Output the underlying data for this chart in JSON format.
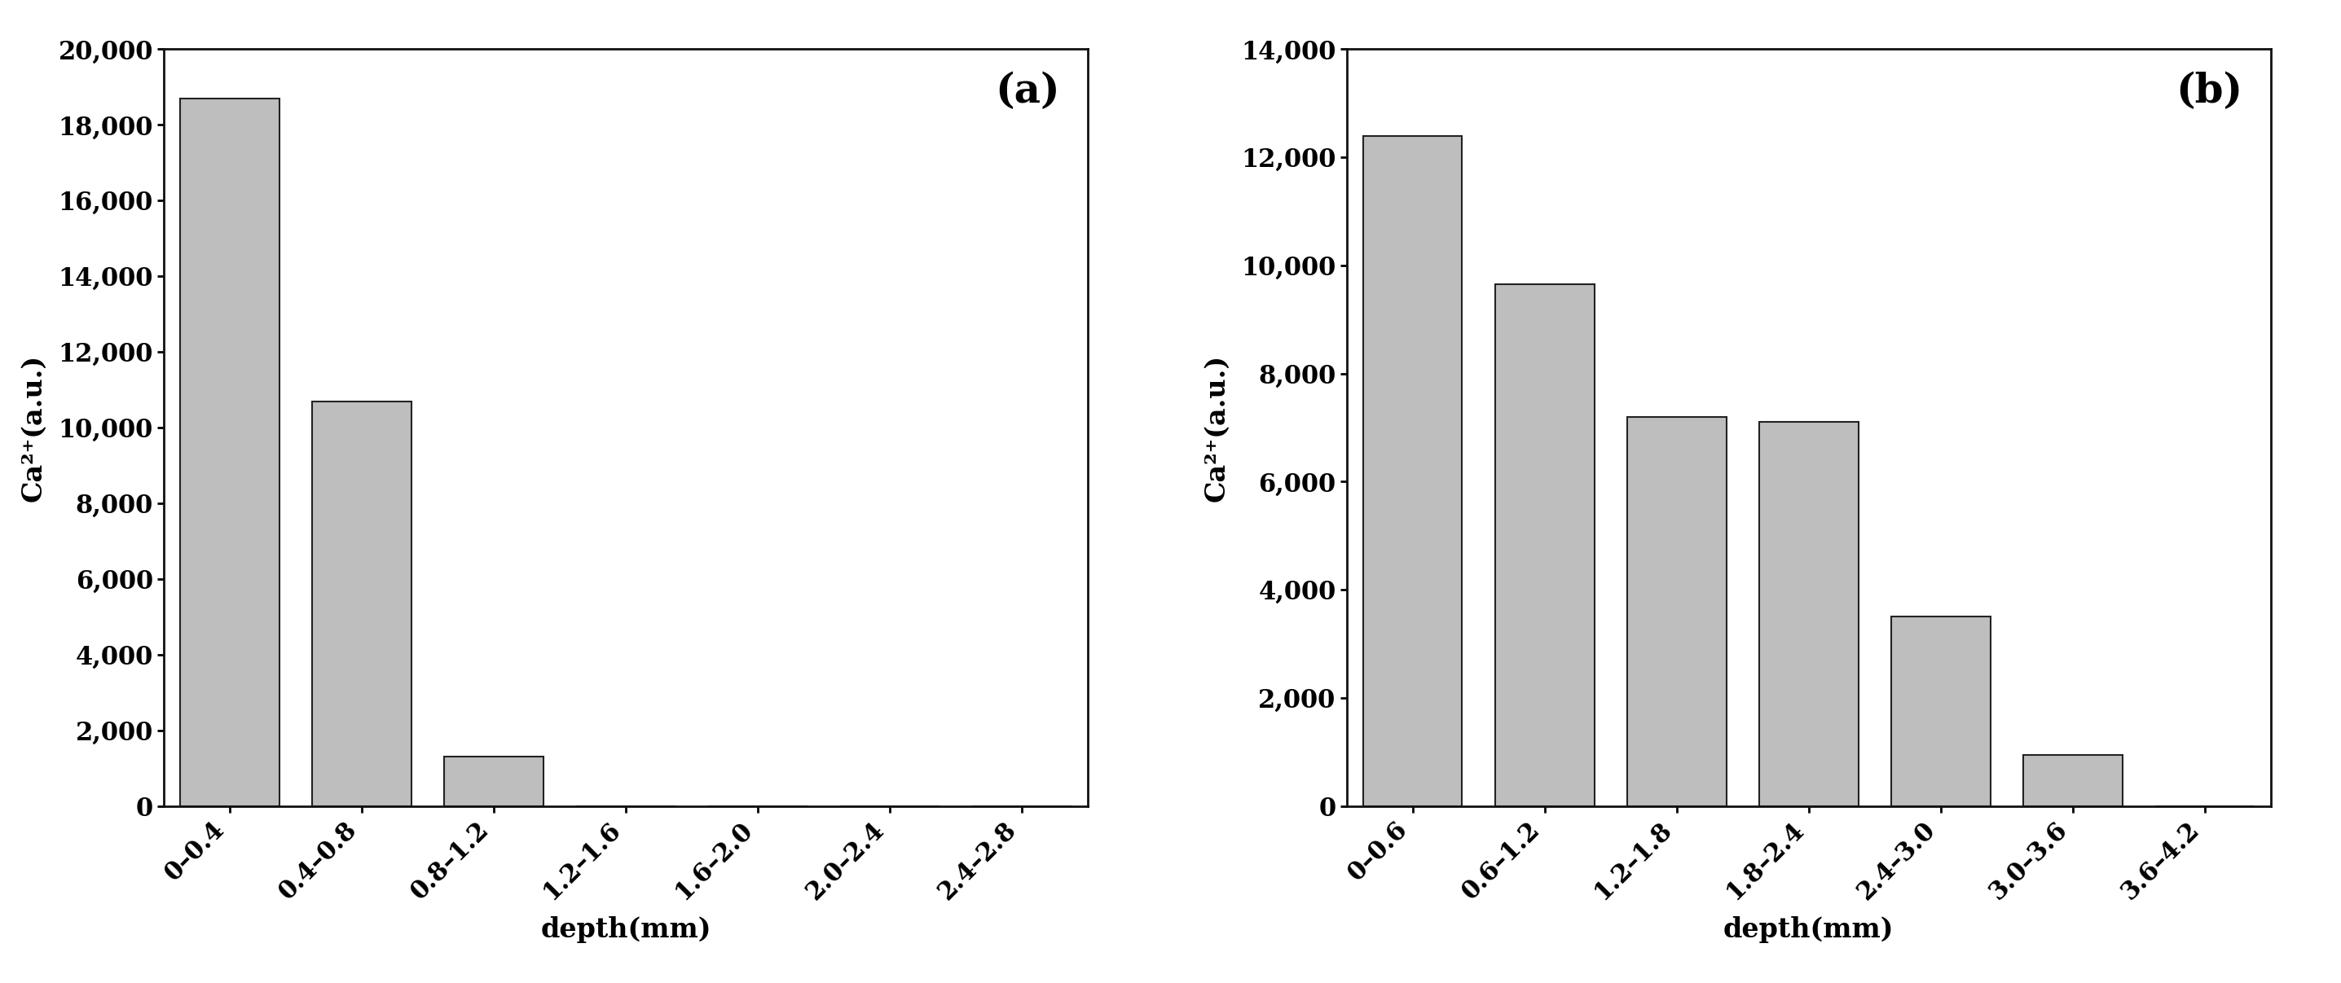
{
  "chart_a": {
    "categories": [
      "0–0.4",
      "0.4–0.8",
      "0.8–1.2",
      "1.2–1.6",
      "1.6–2.0",
      "2.0–2.4",
      "2.4–2.8"
    ],
    "values": [
      18700,
      10700,
      1300,
      0,
      0,
      0,
      0
    ],
    "ylim": [
      0,
      20000
    ],
    "yticks": [
      0,
      2000,
      4000,
      6000,
      8000,
      10000,
      12000,
      14000,
      16000,
      18000,
      20000
    ],
    "xlabel": "depth(mm)",
    "ylabel": "Ca²⁺(a.u.)",
    "label": "(a)"
  },
  "chart_b": {
    "categories": [
      "0–0.6",
      "0.6–1.2",
      "1.2–1.8",
      "1.8–2.4",
      "2.4–3.0",
      "3.0–3.6",
      "3.6–4.2"
    ],
    "values": [
      12400,
      9650,
      7200,
      7100,
      3500,
      950,
      0
    ],
    "ylim": [
      0,
      14000
    ],
    "yticks": [
      0,
      2000,
      4000,
      6000,
      8000,
      10000,
      12000,
      14000
    ],
    "xlabel": "depth(mm)",
    "ylabel": "Ca²⁺(a.u.)",
    "label": "(b)"
  },
  "bar_color": "#bebebe",
  "bar_edgecolor": "#222222",
  "background_color": "#ffffff",
  "bar_width": 0.75,
  "tick_fontsize": 22,
  "label_fontsize": 24,
  "panel_label_fontsize": 36
}
